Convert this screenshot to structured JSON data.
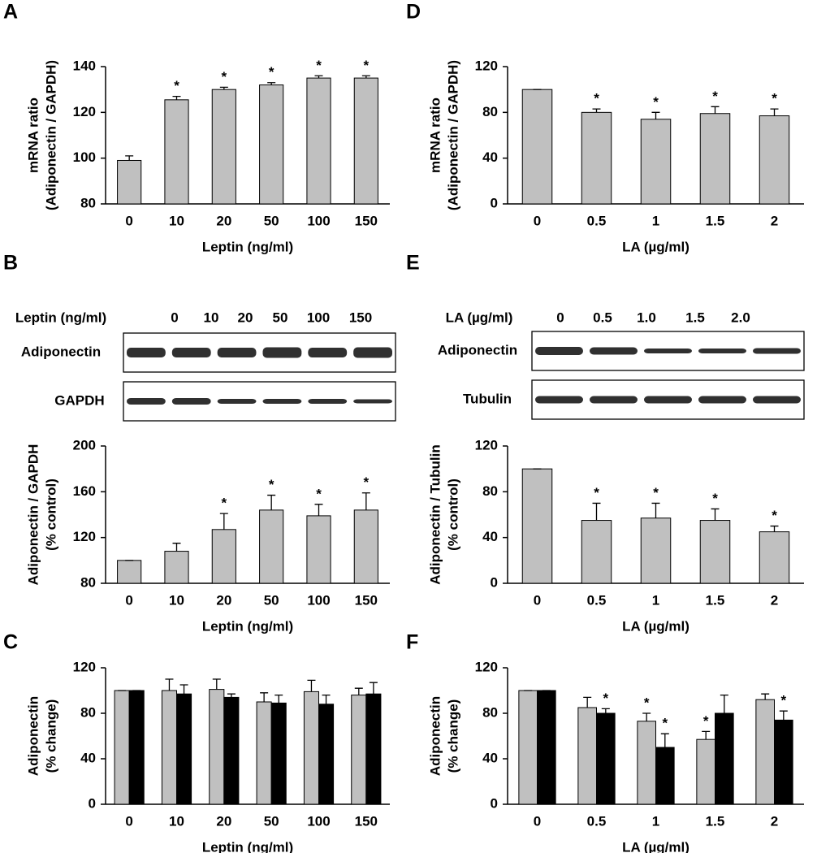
{
  "chart_data": [
    {
      "type": "bar",
      "panel": "A",
      "categories": [
        "0",
        "10",
        "20",
        "50",
        "100",
        "150"
      ],
      "xlabel": "Leptin (ng/ml)",
      "ylabel": [
        "mRNA ratio",
        "(Adiponectin / GAPDH)"
      ],
      "ylim": [
        80,
        140
      ],
      "yticks": [
        80,
        100,
        120,
        140
      ],
      "series": [
        {
          "color": "#c0c0c0",
          "values": [
            99,
            125.5,
            130,
            132,
            135,
            135
          ],
          "errors": [
            2,
            1.5,
            1,
            1,
            1,
            1
          ],
          "annotations": [
            null,
            "*",
            "*",
            "*",
            "*",
            "*"
          ]
        }
      ]
    },
    {
      "type": "bar",
      "panel": "B",
      "categories": [
        "0",
        "10",
        "20",
        "50",
        "100",
        "150"
      ],
      "xlabel": "Leptin (ng/ml)",
      "ylabel": [
        "Adiponectin / GAPDH",
        "(% control)"
      ],
      "ylim": [
        80,
        200
      ],
      "yticks": [
        80,
        120,
        160,
        200
      ],
      "series": [
        {
          "color": "#c0c0c0",
          "values": [
            100,
            108,
            127,
            144,
            139,
            144
          ],
          "errors": [
            0,
            7,
            14,
            13,
            10,
            15
          ],
          "annotations": [
            null,
            null,
            "*",
            "*",
            "*",
            "*"
          ]
        }
      ]
    },
    {
      "type": "bar",
      "panel": "C",
      "categories": [
        "0",
        "10",
        "20",
        "50",
        "100",
        "150"
      ],
      "xlabel": "Leptin (ng/ml)",
      "ylabel": [
        "Adiponectin",
        "(% change)"
      ],
      "ylim": [
        0,
        120
      ],
      "yticks": [
        0,
        40,
        80,
        120
      ],
      "series": [
        {
          "color": "#c0c0c0",
          "values": [
            100,
            100,
            101,
            90,
            99,
            96
          ],
          "errors": [
            0,
            10,
            9,
            8,
            10,
            6
          ]
        },
        {
          "color": "#000000",
          "values": [
            100,
            97,
            94,
            89,
            88,
            97
          ],
          "errors": [
            0,
            8,
            3,
            7,
            8,
            10
          ]
        }
      ]
    },
    {
      "type": "bar",
      "panel": "D",
      "categories": [
        "0",
        "0.5",
        "1",
        "1.5",
        "2"
      ],
      "xlabel": "LA (µg/ml)",
      "ylabel": [
        "mRNA ratio",
        "(Adiponectin / GAPDH)"
      ],
      "ylim": [
        0,
        120
      ],
      "yticks": [
        0,
        40,
        80,
        120
      ],
      "series": [
        {
          "color": "#c0c0c0",
          "values": [
            100,
            80,
            74,
            79,
            77
          ],
          "errors": [
            0,
            3,
            6,
            6,
            6
          ],
          "annotations": [
            null,
            "*",
            "*",
            "*",
            "*"
          ]
        }
      ]
    },
    {
      "type": "bar",
      "panel": "E",
      "categories": [
        "0",
        "0.5",
        "1",
        "1.5",
        "2"
      ],
      "xlabel": "LA (µg/ml)",
      "ylabel": [
        "Adiponectin / Tubulin",
        "(% control)"
      ],
      "ylim": [
        0,
        120
      ],
      "yticks": [
        0,
        40,
        80,
        120
      ],
      "series": [
        {
          "color": "#c0c0c0",
          "values": [
            100,
            55,
            57,
            55,
            45
          ],
          "errors": [
            0,
            15,
            13,
            10,
            5
          ],
          "annotations": [
            null,
            "*",
            "*",
            "*",
            "*"
          ]
        }
      ]
    },
    {
      "type": "bar",
      "panel": "F",
      "categories": [
        "0",
        "0.5",
        "1",
        "1.5",
        "2"
      ],
      "xlabel": "LA (µg/ml)",
      "ylabel": [
        "Adiponectin",
        "(% change)"
      ],
      "ylim": [
        0,
        120
      ],
      "yticks": [
        0,
        40,
        80,
        120
      ],
      "series": [
        {
          "color": "#c0c0c0",
          "values": [
            100,
            85,
            73,
            57,
            92
          ],
          "errors": [
            0,
            9,
            7,
            7,
            5
          ],
          "annotations": [
            null,
            null,
            "*",
            "*",
            null
          ]
        },
        {
          "color": "#000000",
          "values": [
            100,
            80,
            50,
            80,
            74
          ],
          "errors": [
            0,
            4,
            12,
            16,
            8
          ],
          "annotations": [
            null,
            "*",
            "*",
            null,
            "*"
          ]
        }
      ]
    }
  ],
  "blots": [
    {
      "header": "Leptin (ng/ml)",
      "lanes": [
        "0",
        "10",
        "20",
        "50",
        "100",
        "150"
      ],
      "rows": [
        "Adiponectin",
        "GAPDH"
      ]
    },
    {
      "header": "LA (µg/ml)",
      "lanes": [
        "0",
        "0.5",
        "1.0",
        "1.5",
        "2.0"
      ],
      "rows": [
        "Adiponectin",
        "Tubulin"
      ]
    }
  ]
}
